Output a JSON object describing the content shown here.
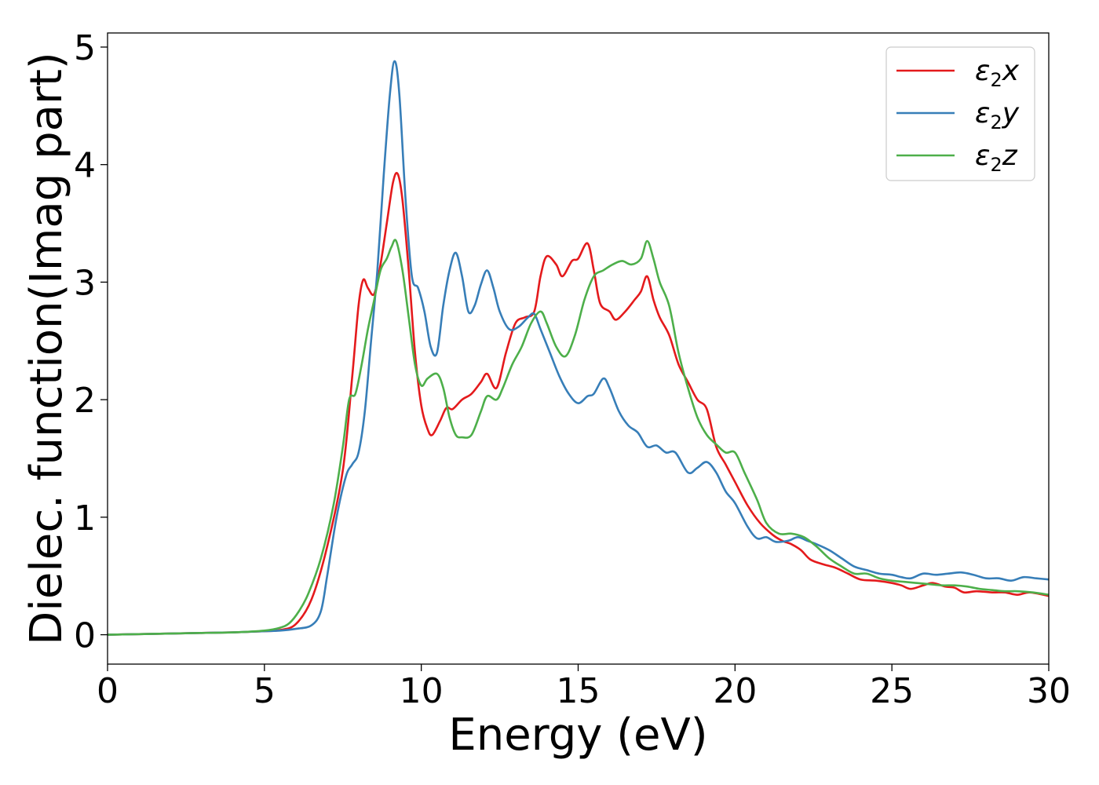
{
  "chart_data": {
    "type": "line",
    "title": "",
    "xlabel": "Energy (eV)",
    "ylabel": "Dielec. function(Imag part)",
    "xlim": [
      0,
      30
    ],
    "ylim": [
      -0.25,
      5.12
    ],
    "xticks": [
      0,
      5,
      10,
      15,
      20,
      25,
      30
    ],
    "yticks": [
      0,
      1,
      2,
      3,
      4,
      5
    ],
    "grid": false,
    "legend_position": "top-right",
    "series": [
      {
        "name": "ε2x",
        "legend": {
          "base": "ε",
          "sub": "2",
          "suffix": "x"
        },
        "color": "#e41a1c",
        "points": [
          [
            0,
            0
          ],
          [
            1,
            0.005
          ],
          [
            2,
            0.01
          ],
          [
            3,
            0.015
          ],
          [
            4,
            0.02
          ],
          [
            5,
            0.03
          ],
          [
            5.5,
            0.04
          ],
          [
            6,
            0.09
          ],
          [
            6.5,
            0.3
          ],
          [
            7,
            0.75
          ],
          [
            7.5,
            1.4
          ],
          [
            7.8,
            2.2
          ],
          [
            8.0,
            2.8
          ],
          [
            8.15,
            3.02
          ],
          [
            8.3,
            2.95
          ],
          [
            8.5,
            2.9
          ],
          [
            8.7,
            3.15
          ],
          [
            8.9,
            3.5
          ],
          [
            9.1,
            3.85
          ],
          [
            9.25,
            3.92
          ],
          [
            9.4,
            3.7
          ],
          [
            9.6,
            3.1
          ],
          [
            9.8,
            2.4
          ],
          [
            10.0,
            1.95
          ],
          [
            10.2,
            1.75
          ],
          [
            10.35,
            1.7
          ],
          [
            10.6,
            1.82
          ],
          [
            10.8,
            1.93
          ],
          [
            11.0,
            1.92
          ],
          [
            11.3,
            2.0
          ],
          [
            11.6,
            2.05
          ],
          [
            11.9,
            2.15
          ],
          [
            12.1,
            2.22
          ],
          [
            12.4,
            2.1
          ],
          [
            12.7,
            2.4
          ],
          [
            13.0,
            2.65
          ],
          [
            13.3,
            2.7
          ],
          [
            13.6,
            2.75
          ],
          [
            13.8,
            3.05
          ],
          [
            14.0,
            3.22
          ],
          [
            14.3,
            3.15
          ],
          [
            14.5,
            3.05
          ],
          [
            14.8,
            3.18
          ],
          [
            15.0,
            3.2
          ],
          [
            15.3,
            3.33
          ],
          [
            15.5,
            3.1
          ],
          [
            15.7,
            2.82
          ],
          [
            16.0,
            2.75
          ],
          [
            16.2,
            2.68
          ],
          [
            16.5,
            2.75
          ],
          [
            16.8,
            2.85
          ],
          [
            17.0,
            2.92
          ],
          [
            17.2,
            3.05
          ],
          [
            17.4,
            2.85
          ],
          [
            17.6,
            2.7
          ],
          [
            17.9,
            2.55
          ],
          [
            18.2,
            2.3
          ],
          [
            18.5,
            2.15
          ],
          [
            18.8,
            2.0
          ],
          [
            19.1,
            1.92
          ],
          [
            19.4,
            1.6
          ],
          [
            19.7,
            1.45
          ],
          [
            20.0,
            1.3
          ],
          [
            20.4,
            1.1
          ],
          [
            20.8,
            0.95
          ],
          [
            21.2,
            0.85
          ],
          [
            21.5,
            0.8
          ],
          [
            21.8,
            0.77
          ],
          [
            22.1,
            0.72
          ],
          [
            22.4,
            0.64
          ],
          [
            22.8,
            0.6
          ],
          [
            23.2,
            0.57
          ],
          [
            23.6,
            0.52
          ],
          [
            24.0,
            0.47
          ],
          [
            24.5,
            0.46
          ],
          [
            25.0,
            0.44
          ],
          [
            25.3,
            0.42
          ],
          [
            25.6,
            0.39
          ],
          [
            26.0,
            0.42
          ],
          [
            26.3,
            0.44
          ],
          [
            26.7,
            0.41
          ],
          [
            27.0,
            0.4
          ],
          [
            27.3,
            0.36
          ],
          [
            27.7,
            0.37
          ],
          [
            28.2,
            0.36
          ],
          [
            28.6,
            0.36
          ],
          [
            29.0,
            0.34
          ],
          [
            29.4,
            0.36
          ],
          [
            30.0,
            0.33
          ]
        ]
      },
      {
        "name": "ε2y",
        "legend": {
          "base": "ε",
          "sub": "2",
          "suffix": "y"
        },
        "color": "#377eb8",
        "points": [
          [
            0,
            0
          ],
          [
            1,
            0.005
          ],
          [
            2,
            0.01
          ],
          [
            3,
            0.015
          ],
          [
            4,
            0.02
          ],
          [
            5,
            0.03
          ],
          [
            5.5,
            0.035
          ],
          [
            6,
            0.05
          ],
          [
            6.5,
            0.08
          ],
          [
            6.8,
            0.2
          ],
          [
            7.0,
            0.5
          ],
          [
            7.3,
            1.0
          ],
          [
            7.6,
            1.35
          ],
          [
            7.8,
            1.45
          ],
          [
            8.0,
            1.55
          ],
          [
            8.2,
            1.9
          ],
          [
            8.4,
            2.5
          ],
          [
            8.6,
            3.1
          ],
          [
            8.8,
            3.9
          ],
          [
            9.0,
            4.6
          ],
          [
            9.15,
            4.88
          ],
          [
            9.3,
            4.6
          ],
          [
            9.5,
            3.7
          ],
          [
            9.7,
            3.05
          ],
          [
            9.9,
            2.95
          ],
          [
            10.1,
            2.75
          ],
          [
            10.3,
            2.45
          ],
          [
            10.5,
            2.4
          ],
          [
            10.7,
            2.8
          ],
          [
            10.9,
            3.1
          ],
          [
            11.1,
            3.25
          ],
          [
            11.3,
            3.05
          ],
          [
            11.5,
            2.75
          ],
          [
            11.7,
            2.8
          ],
          [
            11.9,
            2.98
          ],
          [
            12.1,
            3.1
          ],
          [
            12.3,
            2.95
          ],
          [
            12.5,
            2.75
          ],
          [
            12.8,
            2.6
          ],
          [
            13.1,
            2.62
          ],
          [
            13.4,
            2.7
          ],
          [
            13.6,
            2.73
          ],
          [
            13.8,
            2.6
          ],
          [
            14.1,
            2.4
          ],
          [
            14.4,
            2.2
          ],
          [
            14.7,
            2.05
          ],
          [
            15.0,
            1.97
          ],
          [
            15.3,
            2.03
          ],
          [
            15.5,
            2.05
          ],
          [
            15.8,
            2.18
          ],
          [
            16.0,
            2.1
          ],
          [
            16.3,
            1.9
          ],
          [
            16.6,
            1.78
          ],
          [
            16.9,
            1.72
          ],
          [
            17.2,
            1.6
          ],
          [
            17.5,
            1.61
          ],
          [
            17.8,
            1.55
          ],
          [
            18.1,
            1.55
          ],
          [
            18.5,
            1.38
          ],
          [
            18.8,
            1.42
          ],
          [
            19.1,
            1.47
          ],
          [
            19.4,
            1.38
          ],
          [
            19.7,
            1.22
          ],
          [
            20.0,
            1.12
          ],
          [
            20.4,
            0.92
          ],
          [
            20.7,
            0.82
          ],
          [
            21.0,
            0.83
          ],
          [
            21.3,
            0.79
          ],
          [
            21.7,
            0.8
          ],
          [
            22.0,
            0.83
          ],
          [
            22.3,
            0.8
          ],
          [
            22.6,
            0.77
          ],
          [
            23.0,
            0.72
          ],
          [
            23.4,
            0.65
          ],
          [
            23.8,
            0.58
          ],
          [
            24.2,
            0.55
          ],
          [
            24.6,
            0.52
          ],
          [
            25.0,
            0.51
          ],
          [
            25.3,
            0.49
          ],
          [
            25.6,
            0.48
          ],
          [
            26.0,
            0.52
          ],
          [
            26.4,
            0.51
          ],
          [
            26.8,
            0.52
          ],
          [
            27.2,
            0.53
          ],
          [
            27.6,
            0.51
          ],
          [
            28.0,
            0.48
          ],
          [
            28.4,
            0.48
          ],
          [
            28.8,
            0.46
          ],
          [
            29.2,
            0.49
          ],
          [
            29.6,
            0.48
          ],
          [
            30.0,
            0.47
          ]
        ]
      },
      {
        "name": "ε2z",
        "legend": {
          "base": "ε",
          "sub": "2",
          "suffix": "z"
        },
        "color": "#4daf4a",
        "points": [
          [
            0,
            0
          ],
          [
            1,
            0.005
          ],
          [
            2,
            0.01
          ],
          [
            3,
            0.015
          ],
          [
            4,
            0.02
          ],
          [
            5,
            0.035
          ],
          [
            5.5,
            0.06
          ],
          [
            5.8,
            0.1
          ],
          [
            6.1,
            0.2
          ],
          [
            6.4,
            0.35
          ],
          [
            6.8,
            0.65
          ],
          [
            7.2,
            1.1
          ],
          [
            7.5,
            1.6
          ],
          [
            7.7,
            2.0
          ],
          [
            7.9,
            2.05
          ],
          [
            8.1,
            2.3
          ],
          [
            8.3,
            2.6
          ],
          [
            8.5,
            2.85
          ],
          [
            8.7,
            3.1
          ],
          [
            8.9,
            3.2
          ],
          [
            9.05,
            3.3
          ],
          [
            9.2,
            3.35
          ],
          [
            9.4,
            3.1
          ],
          [
            9.6,
            2.7
          ],
          [
            9.8,
            2.3
          ],
          [
            10.0,
            2.12
          ],
          [
            10.2,
            2.18
          ],
          [
            10.5,
            2.22
          ],
          [
            10.7,
            2.1
          ],
          [
            10.9,
            1.85
          ],
          [
            11.1,
            1.7
          ],
          [
            11.3,
            1.68
          ],
          [
            11.6,
            1.7
          ],
          [
            11.9,
            1.9
          ],
          [
            12.1,
            2.03
          ],
          [
            12.4,
            2.0
          ],
          [
            12.6,
            2.1
          ],
          [
            12.9,
            2.3
          ],
          [
            13.2,
            2.45
          ],
          [
            13.5,
            2.65
          ],
          [
            13.8,
            2.75
          ],
          [
            14.0,
            2.65
          ],
          [
            14.3,
            2.45
          ],
          [
            14.6,
            2.37
          ],
          [
            14.9,
            2.55
          ],
          [
            15.2,
            2.85
          ],
          [
            15.5,
            3.05
          ],
          [
            15.8,
            3.1
          ],
          [
            16.1,
            3.15
          ],
          [
            16.4,
            3.18
          ],
          [
            16.7,
            3.15
          ],
          [
            17.0,
            3.2
          ],
          [
            17.2,
            3.35
          ],
          [
            17.4,
            3.2
          ],
          [
            17.6,
            3.0
          ],
          [
            17.9,
            2.8
          ],
          [
            18.2,
            2.4
          ],
          [
            18.5,
            2.1
          ],
          [
            18.8,
            1.85
          ],
          [
            19.1,
            1.7
          ],
          [
            19.4,
            1.62
          ],
          [
            19.7,
            1.55
          ],
          [
            20.0,
            1.55
          ],
          [
            20.3,
            1.38
          ],
          [
            20.7,
            1.15
          ],
          [
            21.0,
            0.95
          ],
          [
            21.4,
            0.86
          ],
          [
            21.8,
            0.86
          ],
          [
            22.2,
            0.83
          ],
          [
            22.6,
            0.75
          ],
          [
            23.0,
            0.65
          ],
          [
            23.4,
            0.58
          ],
          [
            23.8,
            0.52
          ],
          [
            24.2,
            0.52
          ],
          [
            24.6,
            0.48
          ],
          [
            25.0,
            0.46
          ],
          [
            25.4,
            0.45
          ],
          [
            25.8,
            0.44
          ],
          [
            26.2,
            0.43
          ],
          [
            26.6,
            0.42
          ],
          [
            27.0,
            0.42
          ],
          [
            27.4,
            0.41
          ],
          [
            27.8,
            0.39
          ],
          [
            28.2,
            0.38
          ],
          [
            28.6,
            0.37
          ],
          [
            29.0,
            0.37
          ],
          [
            29.5,
            0.36
          ],
          [
            30.0,
            0.34
          ]
        ]
      }
    ]
  }
}
